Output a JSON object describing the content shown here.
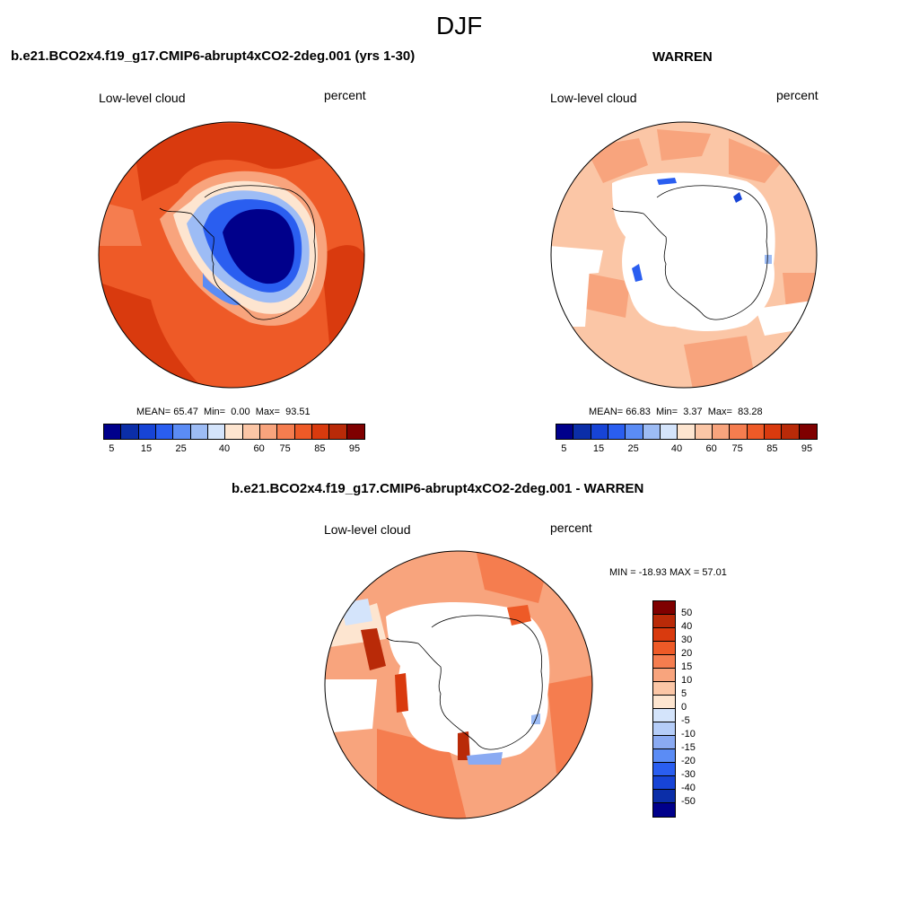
{
  "figure": {
    "title": "DJF"
  },
  "panels": [
    {
      "title": "b.e21.BCO2x4.f19_g17.CMIP6-abrupt4xCO2-2deg.001 (yrs 1-30)",
      "variable": "Low-level cloud",
      "units": "percent",
      "stats": {
        "mean_label": "MEAN=",
        "mean": "65.47",
        "min_label": "Min=",
        "min": "0.00",
        "max_label": "Max=",
        "max": "93.51"
      },
      "colorbar_labels": [
        "5",
        "15",
        "25",
        "40",
        "60",
        "75",
        "85",
        "95"
      ]
    },
    {
      "title": "WARREN",
      "variable": "Low-level cloud",
      "units": "percent",
      "stats": {
        "mean_label": "MEAN=",
        "mean": "66.83",
        "min_label": "Min=",
        "min": "3.37",
        "max_label": "Max=",
        "max": "83.28"
      },
      "colorbar_labels": [
        "5",
        "15",
        "25",
        "40",
        "60",
        "75",
        "85",
        "95"
      ]
    },
    {
      "title": "b.e21.BCO2x4.f19_g17.CMIP6-abrupt4xCO2-2deg.001 - WARREN",
      "variable": "Low-level cloud",
      "units": "percent",
      "minmax": "MIN = -18.93 MAX =  57.01",
      "colorbar_labels": [
        "50",
        "40",
        "30",
        "20",
        "15",
        "10",
        "5",
        "0",
        "-5",
        "-10",
        "-15",
        "-20",
        "-30",
        "-40",
        "-50"
      ]
    }
  ],
  "colors": {
    "abs_scale": [
      "#00008b",
      "#0b2ea8",
      "#1744d6",
      "#2a5ef0",
      "#5b8cf5",
      "#9dbcf5",
      "#d4e4fb",
      "#fde5d0",
      "#fbc6a6",
      "#f8a47d",
      "#f57d4f",
      "#ee5a27",
      "#d93a0e",
      "#b92a08",
      "#7f0000"
    ],
    "diff_scale": [
      "#7f0000",
      "#b92a08",
      "#d93a0e",
      "#ee5a27",
      "#f57d4f",
      "#f8a47d",
      "#fbc6a6",
      "#fde5d0",
      "#d4e4fb",
      "#b5cdf8",
      "#8aaaf2",
      "#5b8cf5",
      "#2a5ef0",
      "#1744d6",
      "#0b2ea8",
      "#00008b"
    ],
    "land_fill": "#ffffff",
    "coast": "#000000"
  }
}
